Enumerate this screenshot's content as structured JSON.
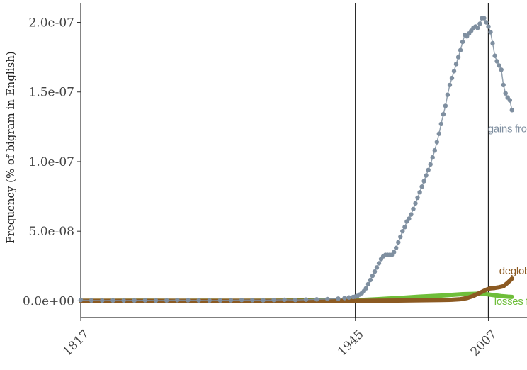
{
  "chart_data": {
    "type": "scatter",
    "title": "",
    "xlabel": "",
    "ylabel": "Frequency (% of bigram in English)",
    "xlim": [
      1817,
      2025
    ],
    "ylim": [
      -1.2e-08,
      2.14e-07
    ],
    "y_ticks": [
      0,
      5e-08,
      1e-07,
      1.5e-07,
      2e-07
    ],
    "y_tick_labels": [
      "0.0e+00",
      "5.0e-08",
      "1.0e-07",
      "1.5e-07",
      "2.0e-07"
    ],
    "x_ticks": [
      1817,
      1945,
      2007
    ],
    "x_tick_labels": [
      "1817",
      "1945",
      "2007"
    ],
    "vertical_lines": [
      1945,
      2007
    ],
    "grid": false,
    "legend": "none (direct labels at series ends)",
    "series": [
      {
        "name": "gains from trade",
        "color": "#7f8fa0",
        "points": [
          [
            1817,
            6e-10
          ],
          [
            1822,
            3e-10
          ],
          [
            1827,
            2e-10
          ],
          [
            1832,
            3e-10
          ],
          [
            1837,
            2e-10
          ],
          [
            1842,
            3e-10
          ],
          [
            1847,
            4e-10
          ],
          [
            1852,
            2e-10
          ],
          [
            1857,
            3e-10
          ],
          [
            1862,
            5e-10
          ],
          [
            1867,
            4e-10
          ],
          [
            1872,
            3e-10
          ],
          [
            1877,
            2e-10
          ],
          [
            1882,
            3e-10
          ],
          [
            1887,
            4e-10
          ],
          [
            1892,
            6e-10
          ],
          [
            1897,
            5e-10
          ],
          [
            1902,
            4e-10
          ],
          [
            1907,
            6e-10
          ],
          [
            1912,
            8e-10
          ],
          [
            1917,
            6e-10
          ],
          [
            1922,
            9e-10
          ],
          [
            1927,
            1.1e-09
          ],
          [
            1932,
            1.3e-09
          ],
          [
            1937,
            1.6e-09
          ],
          [
            1940,
            2e-09
          ],
          [
            1942,
            2.4e-09
          ],
          [
            1944,
            2.8e-09
          ],
          [
            1945,
            3e-09
          ],
          [
            1946,
            3.6e-09
          ],
          [
            1947,
            4.5e-09
          ],
          [
            1948,
            5.5e-09
          ],
          [
            1949,
            7e-09
          ],
          [
            1950,
            9e-09
          ],
          [
            1951,
            1.2e-08
          ],
          [
            1952,
            1.5e-08
          ],
          [
            1953,
            1.8e-08
          ],
          [
            1954,
            2.1e-08
          ],
          [
            1955,
            2.4e-08
          ],
          [
            1956,
            2.7e-08
          ],
          [
            1957,
            3e-08
          ],
          [
            1958,
            3.2e-08
          ],
          [
            1959,
            3.3e-08
          ],
          [
            1960,
            3.3e-08
          ],
          [
            1961,
            3.3e-08
          ],
          [
            1962,
            3.3e-08
          ],
          [
            1963,
            3.5e-08
          ],
          [
            1964,
            3.8e-08
          ],
          [
            1965,
            4.2e-08
          ],
          [
            1966,
            4.6e-08
          ],
          [
            1967,
            5e-08
          ],
          [
            1968,
            5.3e-08
          ],
          [
            1969,
            5.7e-08
          ],
          [
            1970,
            5.9e-08
          ],
          [
            1971,
            6.2e-08
          ],
          [
            1972,
            6.6e-08
          ],
          [
            1973,
            7e-08
          ],
          [
            1974,
            7.4e-08
          ],
          [
            1975,
            7.8e-08
          ],
          [
            1976,
            8.2e-08
          ],
          [
            1977,
            8.6e-08
          ],
          [
            1978,
            9e-08
          ],
          [
            1979,
            9.4e-08
          ],
          [
            1980,
            9.8e-08
          ],
          [
            1981,
            1.03e-07
          ],
          [
            1982,
            1.08e-07
          ],
          [
            1983,
            1.14e-07
          ],
          [
            1984,
            1.2e-07
          ],
          [
            1985,
            1.27e-07
          ],
          [
            1986,
            1.34e-07
          ],
          [
            1987,
            1.4e-07
          ],
          [
            1988,
            1.48e-07
          ],
          [
            1989,
            1.55e-07
          ],
          [
            1990,
            1.6e-07
          ],
          [
            1991,
            1.65e-07
          ],
          [
            1992,
            1.7e-07
          ],
          [
            1993,
            1.75e-07
          ],
          [
            1994,
            1.8e-07
          ],
          [
            1995,
            1.86e-07
          ],
          [
            1996,
            1.91e-07
          ],
          [
            1997,
            1.9e-07
          ],
          [
            1998,
            1.92e-07
          ],
          [
            1999,
            1.94e-07
          ],
          [
            2000,
            1.96e-07
          ],
          [
            2001,
            1.97e-07
          ],
          [
            2002,
            1.96e-07
          ],
          [
            2003,
            1.99e-07
          ],
          [
            2004,
            2.03e-07
          ],
          [
            2005,
            2.03e-07
          ],
          [
            2006,
            2e-07
          ],
          [
            2007,
            1.97e-07
          ],
          [
            2008,
            1.93e-07
          ],
          [
            2009,
            1.85e-07
          ],
          [
            2010,
            1.76e-07
          ],
          [
            2011,
            1.72e-07
          ],
          [
            2012,
            1.69e-07
          ],
          [
            2013,
            1.66e-07
          ],
          [
            2014,
            1.55e-07
          ],
          [
            2015,
            1.49e-07
          ],
          [
            2016,
            1.46e-07
          ],
          [
            2017,
            1.44e-07
          ],
          [
            2018,
            1.37e-07
          ]
        ]
      },
      {
        "name": "losses from trade",
        "color": "#6fbe3a",
        "points": [
          [
            1817,
            0.0
          ],
          [
            1830,
            0.0
          ],
          [
            1845,
            1e-10
          ],
          [
            1860,
            0.0
          ],
          [
            1875,
            1e-10
          ],
          [
            1890,
            0.0
          ],
          [
            1905,
            1e-10
          ],
          [
            1920,
            2e-10
          ],
          [
            1935,
            3e-10
          ],
          [
            1945,
            4e-10
          ],
          [
            1950,
            8e-10
          ],
          [
            1955,
            1.2e-09
          ],
          [
            1960,
            1.6e-09
          ],
          [
            1965,
            2e-09
          ],
          [
            1970,
            2.5e-09
          ],
          [
            1975,
            3e-09
          ],
          [
            1980,
            3.4e-09
          ],
          [
            1985,
            3.8e-09
          ],
          [
            1990,
            4.3e-09
          ],
          [
            1995,
            4.8e-09
          ],
          [
            2000,
            5e-09
          ],
          [
            2003,
            5.2e-09
          ],
          [
            2005,
            5e-09
          ],
          [
            2007,
            4.6e-09
          ],
          [
            2010,
            4e-09
          ],
          [
            2013,
            3.4e-09
          ],
          [
            2016,
            3e-09
          ],
          [
            2018,
            2.8e-09
          ]
        ]
      },
      {
        "name": "deglobalization",
        "color": "#8c5a22",
        "points": [
          [
            1817,
            0.0
          ],
          [
            1830,
            0.0
          ],
          [
            1850,
            0.0
          ],
          [
            1870,
            0.0
          ],
          [
            1890,
            0.0
          ],
          [
            1910,
            0.0
          ],
          [
            1930,
            0.0
          ],
          [
            1945,
            0.0
          ],
          [
            1955,
            1e-10
          ],
          [
            1965,
            2e-10
          ],
          [
            1975,
            4e-10
          ],
          [
            1985,
            6e-10
          ],
          [
            1990,
            8e-10
          ],
          [
            1994,
            1.2e-09
          ],
          [
            1997,
            2e-09
          ],
          [
            2000,
            3.5e-09
          ],
          [
            2002,
            5e-09
          ],
          [
            2004,
            6.5e-09
          ],
          [
            2006,
            8e-09
          ],
          [
            2008,
            9e-09
          ],
          [
            2010,
            9.3e-09
          ],
          [
            2012,
            9.8e-09
          ],
          [
            2014,
            1.05e-08
          ],
          [
            2016,
            1.3e-08
          ],
          [
            2018,
            1.6e-08
          ]
        ]
      }
    ]
  }
}
